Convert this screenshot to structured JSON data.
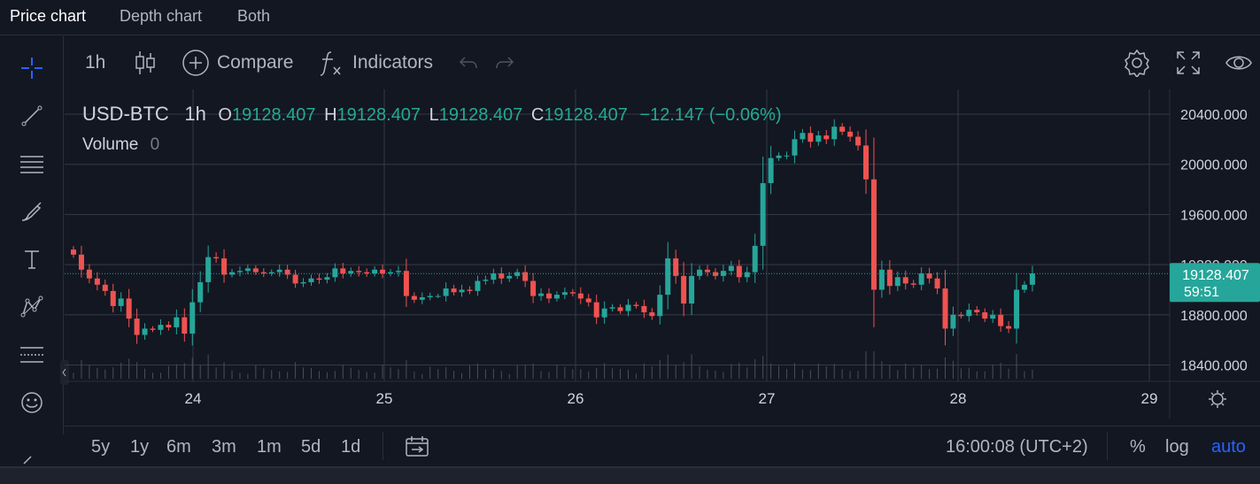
{
  "tabs": [
    "Price chart",
    "Depth chart",
    "Both"
  ],
  "toolbar": {
    "interval": "1h",
    "compare": "Compare",
    "indicators": "Indicators"
  },
  "legend": {
    "symbol": "USD-BTC",
    "interval": "1h",
    "o_label": "O",
    "o": "19128.407",
    "h_label": "H",
    "h": "19128.407",
    "l_label": "L",
    "l": "19128.407",
    "c_label": "C",
    "c": "19128.407",
    "change": "−12.147 (−0.06%)",
    "volume_label": "Volume",
    "volume_value": "0"
  },
  "price_tag": {
    "value": "19128.407",
    "countdown": "59:51"
  },
  "ranges": [
    "5y",
    "1y",
    "6m",
    "3m",
    "1m",
    "5d",
    "1d"
  ],
  "time_display": "16:00:08 (UTC+2)",
  "scale_opts": {
    "percent": "%",
    "log": "log",
    "auto": "auto"
  },
  "colors": {
    "up": "#26a69a",
    "down": "#ef5350",
    "background": "#131722",
    "accent": "#2962ff"
  },
  "chart_data": {
    "type": "candlestick",
    "symbol": "USD-BTC",
    "interval": "1h",
    "x_ticks": [
      "24",
      "25",
      "26",
      "27",
      "28",
      "29"
    ],
    "y_ticks": [
      "20400.000",
      "20000.000",
      "19600.000",
      "19200.000",
      "18800.000",
      "18400.000"
    ],
    "ylim": [
      18400,
      20400
    ],
    "last_price": 19128.407,
    "candles_close": [
      19280,
      19160,
      19090,
      19040,
      18990,
      18870,
      18930,
      18770,
      18640,
      18690,
      18680,
      18720,
      18700,
      18780,
      18650,
      18900,
      19060,
      19260,
      19250,
      19120,
      19140,
      19150,
      19170,
      19140,
      19130,
      19140,
      19160,
      19120,
      19050,
      19060,
      19090,
      19080,
      19100,
      19170,
      19130,
      19150,
      19140,
      19130,
      19160,
      19130,
      19140,
      19150,
      18950,
      18920,
      18940,
      18950,
      18950,
      19010,
      18980,
      19000,
      18990,
      19070,
      19080,
      19130,
      19090,
      19110,
      19140,
      19070,
      18950,
      18970,
      18930,
      18960,
      18980,
      18970,
      18930,
      18900,
      18780,
      18850,
      18860,
      18830,
      18880,
      18870,
      18820,
      18790,
      18960,
      19250,
      19110,
      18890,
      19110,
      19160,
      19140,
      19110,
      19150,
      19190,
      19100,
      19140,
      19350,
      19850,
      20050,
      20070,
      20070,
      20200,
      20250,
      20180,
      20230,
      20200,
      20300,
      20260,
      20220,
      20150,
      19880,
      19000,
      19160,
      19030,
      19100,
      19050,
      19040,
      19130,
      19090,
      19010,
      18690,
      18800,
      18790,
      18840,
      18820,
      18770,
      18800,
      18710,
      18690,
      19000,
      19040,
      19130
    ]
  }
}
